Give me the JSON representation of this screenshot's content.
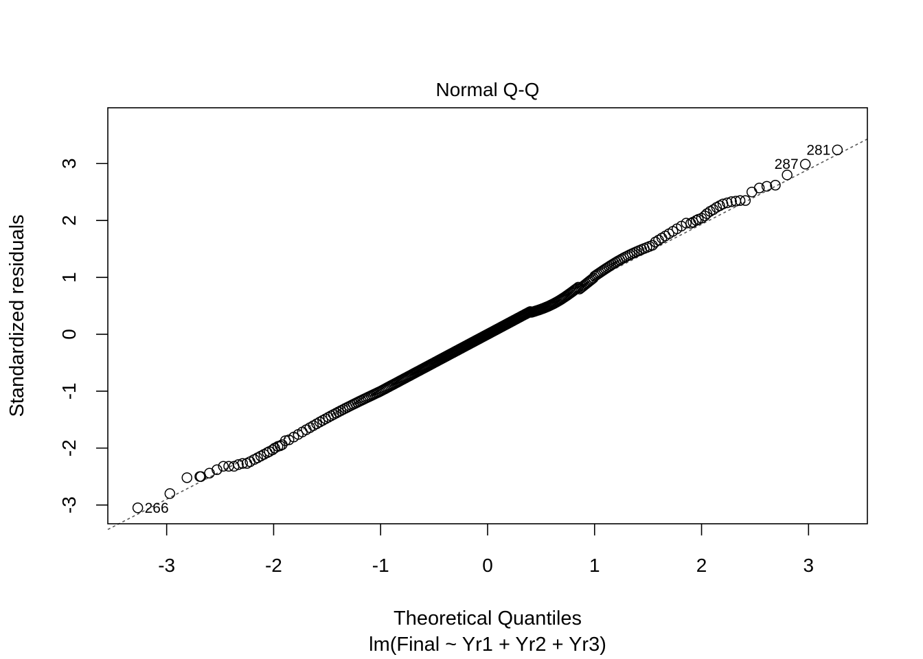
{
  "chart_data": {
    "type": "scatter",
    "title": "Normal Q-Q",
    "xlabel": "Theoretical Quantiles",
    "xlabel2": "lm(Final ~ Yr1 + Yr2 + Yr3)",
    "ylabel": "Standardized residuals",
    "xlim": [
      -3.55,
      3.55
    ],
    "ylim": [
      -3.33,
      3.98
    ],
    "x_ticks": [
      -3,
      -2,
      -1,
      0,
      1,
      2,
      3
    ],
    "x_tick_labels": [
      "-3",
      "-2",
      "-1",
      "0",
      "1",
      "2",
      "3"
    ],
    "y_ticks": [
      -3,
      -2,
      -1,
      0,
      1,
      2,
      3
    ],
    "y_tick_labels": [
      "-3",
      "-2",
      "-1",
      "0",
      "1",
      "2",
      "3"
    ],
    "grid": false,
    "reference_line": {
      "slope": 0.9663,
      "intercept": 0.0,
      "style": "dotted"
    },
    "n_points": 300,
    "points": [
      {
        "x": -3.27,
        "y": -3.05
      },
      {
        "x": -2.97,
        "y": -2.8
      },
      {
        "x": -2.81,
        "y": -2.52
      },
      {
        "x": -2.69,
        "y": -2.5
      },
      {
        "x": -2.6,
        "y": -2.44
      },
      {
        "x": -2.53,
        "y": -2.38
      },
      {
        "x": -2.47,
        "y": -2.32
      },
      {
        "x": -2.42,
        "y": -2.32
      },
      {
        "x": -2.37,
        "y": -2.32
      },
      {
        "x": -2.33,
        "y": -2.29
      },
      {
        "x": -2.29,
        "y": -2.27
      },
      {
        "x": -2.25,
        "y": -2.27
      },
      {
        "x": -2.22,
        "y": -2.24
      },
      {
        "x": -2.18,
        "y": -2.2
      },
      {
        "x": -2.15,
        "y": -2.17
      },
      {
        "x": -2.12,
        "y": -2.14
      },
      {
        "x": -2.09,
        "y": -2.11
      },
      {
        "x": -2.06,
        "y": -2.08
      },
      {
        "x": -2.04,
        "y": -2.06
      },
      {
        "x": -2.01,
        "y": -2.03
      },
      {
        "x": -1.99,
        "y": -2.0
      },
      {
        "x": -1.96,
        "y": -1.97
      },
      {
        "x": -1.94,
        "y": -1.96
      },
      {
        "x": -1.92,
        "y": -1.94
      },
      {
        "x": -1.89,
        "y": -1.87
      },
      {
        "x": -2.68,
        "y": -2.5
      }
    ],
    "labeled_points": [
      {
        "x": -3.27,
        "y": -3.05,
        "label": "266",
        "side": "right"
      },
      {
        "x": 2.97,
        "y": 2.99,
        "label": "287",
        "side": "left"
      },
      {
        "x": 3.27,
        "y": 3.24,
        "label": "281",
        "side": "left"
      }
    ]
  }
}
